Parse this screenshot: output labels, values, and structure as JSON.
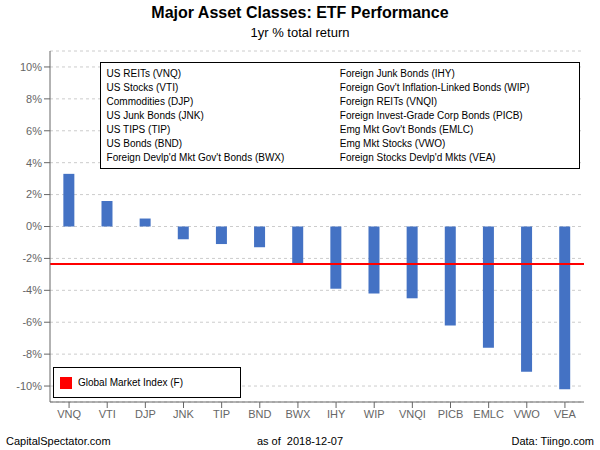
{
  "chart_data": {
    "type": "bar",
    "title": "Major Asset Classes: ETF Performance",
    "subtitle": "1yr % total return",
    "categories": [
      "VNQ",
      "VTI",
      "DJP",
      "JNK",
      "TIP",
      "BND",
      "BWX",
      "IHY",
      "WIP",
      "VNQI",
      "PICB",
      "EMLC",
      "VWO",
      "VEA"
    ],
    "values": [
      3.3,
      1.6,
      0.5,
      -0.8,
      -1.1,
      -1.3,
      -2.3,
      -3.9,
      -4.2,
      -4.5,
      -6.2,
      -7.6,
      -9.1,
      -10.2
    ],
    "color": "#4472C4",
    "ylim": [
      -11,
      11
    ],
    "yticks": [
      {
        "value": -10,
        "label": "-10%"
      },
      {
        "value": -8,
        "label": "-8%"
      },
      {
        "value": -6,
        "label": "-6%"
      },
      {
        "value": -4,
        "label": "-4%"
      },
      {
        "value": -2,
        "label": "-2%"
      },
      {
        "value": 0,
        "label": "0%"
      },
      {
        "value": 2,
        "label": "2%"
      },
      {
        "value": 4,
        "label": "4%"
      },
      {
        "value": 6,
        "label": "6%"
      },
      {
        "value": 8,
        "label": "8%"
      },
      {
        "value": 10,
        "label": "10%"
      }
    ],
    "grid": true,
    "reference_line": {
      "value": -2.35,
      "label": "Global Market Index (F)",
      "color": "#FF0000"
    },
    "legend_columns": [
      [
        "US REITs (VNQ)",
        "US Stocks (VTI)",
        "Commodities (DJP)",
        "US Junk Bonds (JNK)",
        "US TIPS (TIP)",
        "US Bonds (BND)",
        "Foreign Devlp'd Mkt Gov't Bonds (BWX)"
      ],
      [
        "Foreign Junk Bonds (IHY)",
        "Foreign Gov't Inflation-Linked Bonds (WIP)",
        "Foreign REITs (VNQI)",
        "Foreign Invest-Grade Corp Bonds (PICB)",
        "Emg Mkt Gov't Bonds (EMLC)",
        "Emg Mkt Stocks (VWO)",
        "Foreign Stocks Devlp'd Mkts (VEA)"
      ]
    ],
    "footer": [
      "CapitalSpectator.com",
      "as of  2018-12-07",
      "Data: Tiingo.com"
    ]
  }
}
